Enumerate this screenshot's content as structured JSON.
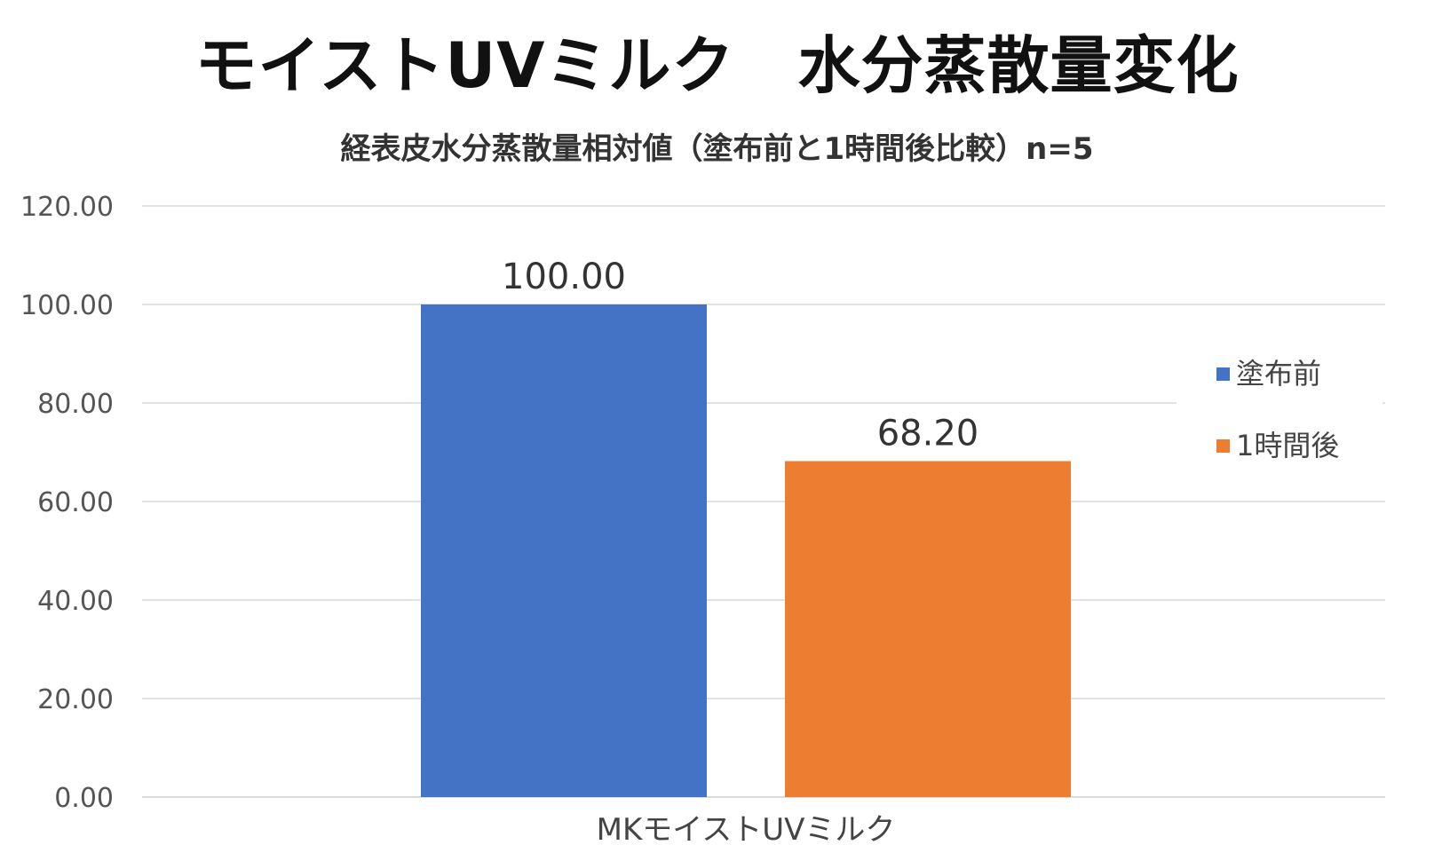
{
  "chart_data": {
    "type": "bar",
    "title": "モイストUVミルク　水分蒸散量変化",
    "subtitle": "経表皮水分蒸散量相対値（塗布前と1時間後比較）n=5",
    "categories": [
      "MKモイストUVミルク"
    ],
    "series": [
      {
        "name": "塗布前",
        "values": [
          100.0
        ],
        "color": "#4472C4",
        "label": "100.00"
      },
      {
        "name": "1時間後",
        "values": [
          68.2
        ],
        "color": "#ED7D31",
        "label": "68.20"
      }
    ],
    "ylim": [
      0,
      120
    ],
    "yticks": [
      0,
      20,
      40,
      60,
      80,
      100,
      120
    ],
    "ytick_labels": [
      "0.00",
      "20.00",
      "40.00",
      "60.00",
      "80.00",
      "100.00",
      "120.00"
    ],
    "grid": true,
    "legend_position": "right"
  }
}
